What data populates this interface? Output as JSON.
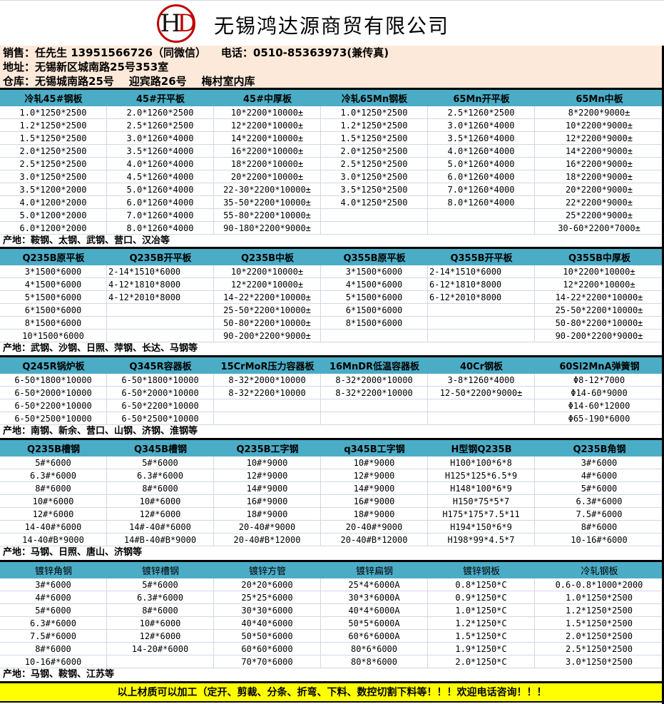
{
  "header": {
    "logo_text": "HD",
    "company": "无锡鸿达源商贸有限公司",
    "brand_colors": {
      "logo_red": "#c00000",
      "header_teal": "#4bacc6",
      "info_bg": "#fde9d9",
      "banner_yellow": "#ffff00"
    }
  },
  "info": {
    "line1": "销售：任先生 13951566726（同微信）    电话：0510-85363973(兼传真)",
    "line2": "地址：无锡新区城南路25号353室",
    "line3": "仓库：无锡城南路25号    迎宾路26号    梅村室内库"
  },
  "sections": [
    {
      "headers": [
        "冷轧45#钢板",
        "45#开平板",
        "45#中厚板",
        "冷轧65Mn钢板",
        "65Mn开平板",
        "65Mn中板"
      ],
      "rows": [
        [
          "1.0*1250*2500",
          "2.0*1260*2500",
          "10*2200*10000±",
          "1.0*1250*2500",
          "2.5*1260*2500",
          "8*2200*9000±"
        ],
        [
          "1.2*1250*2500",
          "2.5*1260*2500",
          "12*2200*10000±",
          "1.2*1250*2500",
          "3.0*1260*4000",
          "10*2200*9000±"
        ],
        [
          "1.5*1250*2500",
          "3.0*1260*4000",
          "14*2200*10000±",
          "1.5*1250*2500",
          "3.5*1260*4000",
          "12*2200*9000±"
        ],
        [
          "2.0*1250*2500",
          "3.5*1260*4000",
          "16*2200*10000±",
          "2.0*1250*2500",
          "4.0*1260*4000",
          "14*2200*9000±"
        ],
        [
          "2.5*1250*2500",
          "4.0*1260*4000",
          "18*2200*10000±",
          "2.5*1250*2500",
          "5.0*1260*4000",
          "16*2200*9000±"
        ],
        [
          "3.0*1250*2500",
          "4.5*1260*4000",
          "20*2200*10000±",
          "3.0*1250*2500",
          "6.0*1260*4000",
          "18*2200*9000±"
        ],
        [
          "3.5*1200*2000",
          "5.0*1260*4000",
          "22-30*2200*10000±",
          "3.5*1250*2500",
          "7.0*1260*4000",
          "20*2200*9000±"
        ],
        [
          "4.0*1200*2000",
          "6.0*1260*4000",
          "35-50*2200*10000±",
          "4.0*1250*2500",
          "8.0*1260*4000",
          "22*2200*9000±"
        ],
        [
          "5.0*1200*2000",
          "7.0*1260*4000",
          "55-80*2200*10000±",
          "",
          "",
          "25*2200*9000±"
        ],
        [
          "6.0*1200*2000",
          "8.0*1260*4000",
          "90-180*2200*9000±",
          "",
          "",
          "30-60*2200*7000±"
        ]
      ],
      "origin": "产地：鞍钢、太钢、武钢、营口、汉冶等"
    },
    {
      "headers": [
        "Q235B原平板",
        "Q235B开平板",
        "Q235B中板",
        "Q355B原平板",
        "Q355B开平板",
        "Q355B中厚板"
      ],
      "rows": [
        [
          "3*1500*6000",
          "2-14*1510*6000",
          "10*2200*10000±",
          "3*1500*6000",
          "2-14*1510*6000",
          "10*2200*10000±"
        ],
        [
          "4*1500*6000",
          "4-12*1810*8000",
          "12*2200*10000±",
          "4*1500*6000",
          "6-12*1810*8000",
          "12*2200*10000±"
        ],
        [
          "5*1500*6000",
          "4-12*2010*8000",
          "14-22*2200*10000±",
          "5*1500*6000",
          "6-12*2010*8000",
          "14-22*2200*10000±"
        ],
        [
          "6*1500*6000",
          "",
          "25-50*2200*10000±",
          "6*1500*6000",
          "",
          "25-50*2200*10000±"
        ],
        [
          "8*1500*6000",
          "",
          "50-80*2200*10000±",
          "8*1500*6000",
          "",
          "50-80*2200*10000±"
        ],
        [
          "10*1500*6000",
          "",
          "90-200*2200*9000±",
          "",
          "",
          "90-200*2200*9000±"
        ]
      ],
      "origin": "产地：武钢、沙钢、日照、萍钢、长达、马钢等"
    },
    {
      "headers": [
        "Q245R锅炉板",
        "Q345R容器板",
        "15CrMoR压力容器板",
        "16MnDR低温容器板",
        "40Cr钢板",
        "60Si2MnA弹簧钢"
      ],
      "rows": [
        [
          "6-50*1800*10000",
          "6-50*1800*10000",
          "8-32*2000*10000",
          "8-32*2000*10000",
          "3-8*1260*4000",
          "Φ8-12*7000"
        ],
        [
          "6-50*2000*10000",
          "6-50*2000*10000",
          "8-32*2200*10000",
          "8-32*2200*10000",
          "12-50*2200*9000±",
          "Φ14-60*9000"
        ],
        [
          "6-50*2200*10000",
          "6-50*2200*10000",
          "",
          "",
          "",
          "Φ14-60*12000"
        ],
        [
          "6-50*2500*10000",
          "6-50*2500*10000",
          "",
          "",
          "",
          "Φ65-190*6000"
        ]
      ],
      "origin": "产地：南钢、新余、营口、山钢、济钢、淮钢等"
    },
    {
      "headers": [
        "Q235B槽钢",
        "Q345B槽钢",
        "Q235B工字钢",
        "q345B工字钢",
        "H型钢Q235B",
        "Q235B角钢"
      ],
      "rows": [
        [
          "5#*6000",
          "5#*6000",
          "10#*9000",
          "10#*9000",
          "H100*100*6*8",
          "3#*6000"
        ],
        [
          "6.3#*6000",
          "6.3#*6000",
          "12#*9000",
          "12#*9000",
          "H125*125*6.5*9",
          "4#*6000"
        ],
        [
          "8#*6000",
          "8#*6000",
          "14#*9000",
          "14#*9000",
          "H148*100*6*9",
          "5#*6000"
        ],
        [
          "10#*6000",
          "10#*6000",
          "16#*9000",
          "16#*9000",
          "H150*75*5*7",
          "6.3#*6000"
        ],
        [
          "12#*6000",
          "12#*6000",
          "18#*9000",
          "18#*9000",
          "H175*175*7.5*11",
          "7.5#*6000"
        ],
        [
          "14-40#*6000",
          "14#-40#*6000",
          "20-40#*9000",
          "20-40#*9000",
          "H194*150*6*9",
          "8#*6000"
        ],
        [
          "14-40#B*9000",
          "14#B-40#B*9000",
          "20-40#B*12000",
          "20-40#B*12000",
          "H198*99*4.5*7",
          "10-16#*6000"
        ]
      ],
      "origin": "产地：马钢、日照、唐山、济钢等"
    },
    {
      "headers": [
        "镀锌角钢",
        "镀锌槽钢",
        "镀锌方管",
        "镀锌扁钢",
        "镀锌钢板",
        "冷轧钢板"
      ],
      "rows": [
        [
          "3#*6000",
          "5#*6000",
          "20*20*6000",
          "25*4*6000A",
          "0.8*1250*C",
          "0.6-0.8*1000*2000"
        ],
        [
          "4#*6000",
          "6.3#*6000",
          "25*25*6000",
          "30*3*6000A",
          "0.9*1250*C",
          "1.0*1250*2500"
        ],
        [
          "5#*6000",
          "8#*6000",
          "30*30*6000",
          "40*4*6000A",
          "1.0*1250*C",
          "1.2*1250*2500"
        ],
        [
          "6.3#*6000",
          "10#*6000",
          "40*40*6000",
          "50*5*6000A",
          "1.2*1250*C",
          "1.5*1250*2500"
        ],
        [
          "7.5#*6000",
          "12#*6000",
          "50*50*6000",
          "60*6*6000A",
          "1.5*1250*C",
          "2.0*1250*2500"
        ],
        [
          "8#*6000",
          "14-20#*6000",
          "60*60*6000",
          "80*6*6000",
          "1.9*1250*C",
          "2.5*1250*2500"
        ],
        [
          "10-16#*6000",
          "",
          "70*70*6000",
          "80*8*6000",
          "2.0*1250*C",
          "3.0*1250*2500"
        ]
      ],
      "origin": "产地：马钢、鞍钢、江苏等"
    }
  ],
  "banner": "以上材质可以加工（定开、剪裁、分条、折弯、下料、数控切割下料等！！！欢迎电话咨询！！！"
}
